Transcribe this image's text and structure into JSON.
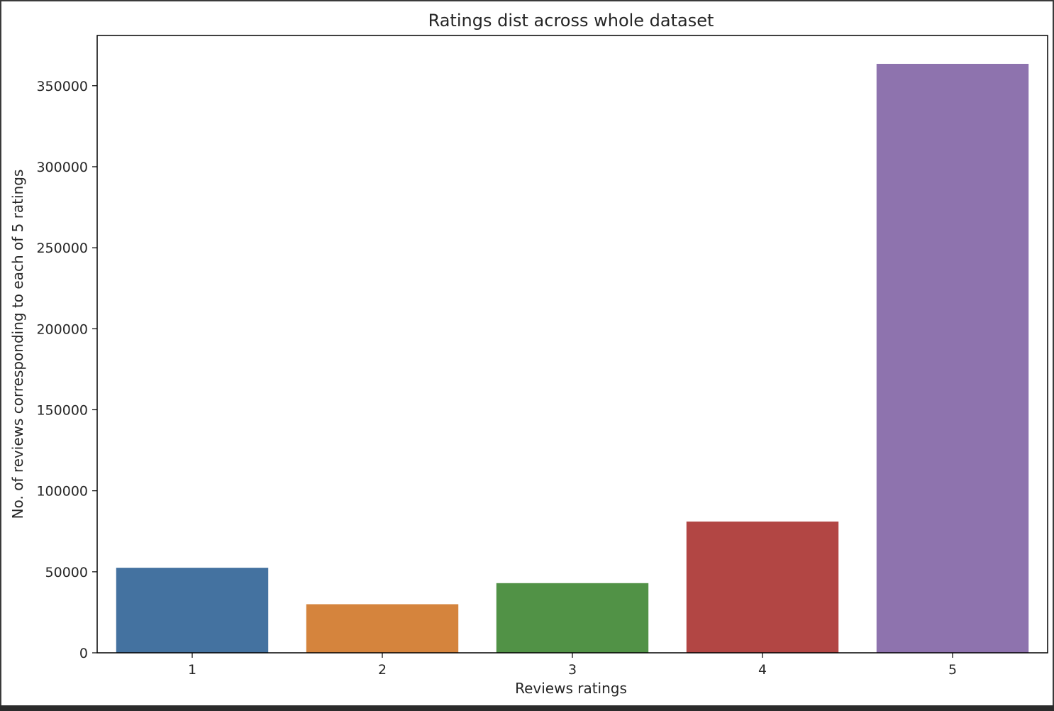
{
  "chart_data": {
    "type": "bar",
    "title": "Ratings dist across whole dataset",
    "xlabel": "Reviews ratings",
    "ylabel": "No. of reviews corresponding to each of 5 ratings",
    "categories": [
      "1",
      "2",
      "3",
      "4",
      "5"
    ],
    "values": [
      52500,
      30000,
      43000,
      81000,
      363500
    ],
    "colors": [
      "#4472a0",
      "#d5843d",
      "#519246",
      "#b24644",
      "#8e73ae"
    ],
    "ylim": [
      0,
      381000
    ],
    "yticks": [
      0,
      50000,
      100000,
      150000,
      200000,
      250000,
      300000,
      350000
    ],
    "ytick_labels": [
      "0",
      "50000",
      "100000",
      "150000",
      "200000",
      "250000",
      "300000",
      "350000"
    ],
    "grid": false,
    "legend": "none"
  }
}
